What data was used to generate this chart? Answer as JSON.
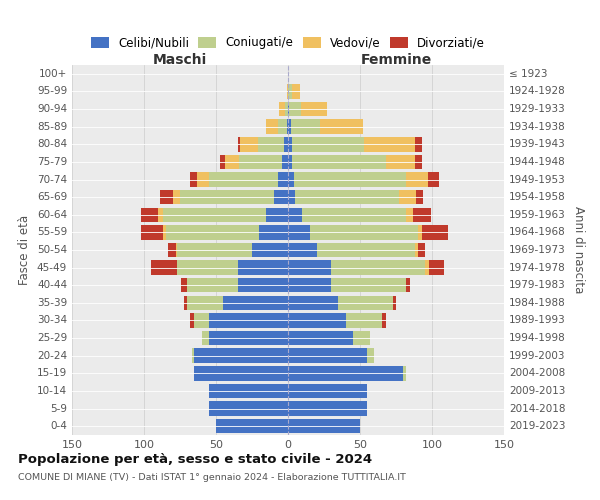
{
  "age_groups": [
    "0-4",
    "5-9",
    "10-14",
    "15-19",
    "20-24",
    "25-29",
    "30-34",
    "35-39",
    "40-44",
    "45-49",
    "50-54",
    "55-59",
    "60-64",
    "65-69",
    "70-74",
    "75-79",
    "80-84",
    "85-89",
    "90-94",
    "95-99",
    "100+"
  ],
  "birth_years": [
    "2019-2023",
    "2014-2018",
    "2009-2013",
    "2004-2008",
    "1999-2003",
    "1994-1998",
    "1989-1993",
    "1984-1988",
    "1979-1983",
    "1974-1978",
    "1969-1973",
    "1964-1968",
    "1959-1963",
    "1954-1958",
    "1949-1953",
    "1944-1948",
    "1939-1943",
    "1934-1938",
    "1929-1933",
    "1924-1928",
    "≤ 1923"
  ],
  "males_celibi": [
    50,
    55,
    55,
    65,
    65,
    55,
    55,
    45,
    35,
    35,
    25,
    20,
    15,
    10,
    7,
    4,
    3,
    1,
    0,
    0,
    0
  ],
  "males_coniugati": [
    0,
    0,
    0,
    0,
    2,
    5,
    10,
    25,
    35,
    42,
    52,
    65,
    72,
    65,
    48,
    30,
    18,
    6,
    2,
    0,
    0
  ],
  "males_vedovi": [
    0,
    0,
    0,
    0,
    0,
    0,
    0,
    0,
    0,
    0,
    1,
    2,
    3,
    5,
    8,
    10,
    12,
    8,
    4,
    1,
    0
  ],
  "males_divorziati": [
    0,
    0,
    0,
    0,
    0,
    0,
    3,
    2,
    4,
    18,
    5,
    15,
    12,
    9,
    5,
    3,
    2,
    0,
    0,
    0,
    0
  ],
  "fem_nubili": [
    50,
    55,
    55,
    80,
    55,
    45,
    40,
    35,
    30,
    30,
    20,
    15,
    10,
    5,
    4,
    3,
    3,
    2,
    1,
    0,
    0
  ],
  "fem_coniugate": [
    0,
    0,
    0,
    2,
    5,
    12,
    25,
    38,
    52,
    65,
    68,
    75,
    72,
    72,
    78,
    65,
    50,
    20,
    8,
    3,
    0
  ],
  "fem_vedove": [
    0,
    0,
    0,
    0,
    0,
    0,
    0,
    0,
    0,
    3,
    2,
    3,
    5,
    12,
    15,
    20,
    35,
    30,
    18,
    5,
    0
  ],
  "fem_divorziate": [
    0,
    0,
    0,
    0,
    0,
    0,
    3,
    2,
    3,
    10,
    5,
    18,
    12,
    5,
    8,
    5,
    5,
    0,
    0,
    0,
    0
  ],
  "colors": {
    "celibi_nubili": "#4472C4",
    "coniugati": "#BFCF8E",
    "vedovi": "#F0C060",
    "divorziati": "#C0392B"
  },
  "title": "Popolazione per età, sesso e stato civile - 2024",
  "subtitle": "COMUNE DI MIANE (TV) - Dati ISTAT 1° gennaio 2024 - Elaborazione TUTTITALIA.IT",
  "label_maschi": "Maschi",
  "label_femmine": "Femmine",
  "ylabel_left": "Fasce di età",
  "ylabel_right": "Anni di nascita",
  "xlim": 150,
  "bg_plot": "#ebebeb",
  "bg_fig": "#ffffff",
  "legend_labels": [
    "Celibi/Nubili",
    "Coniugati/e",
    "Vedovi/e",
    "Divorziati/e"
  ]
}
